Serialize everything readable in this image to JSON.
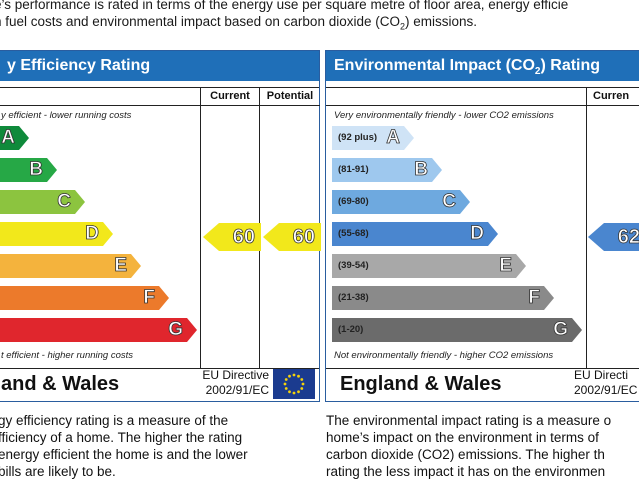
{
  "intro": {
    "line1": "e’s performance is rated in terms of the energy use per square metre of floor area, energy efficie",
    "line2": "n fuel costs and environmental impact based on carbon dioxide (CO",
    "line2_sub": "2",
    "line2_end": ") emissions."
  },
  "energy": {
    "title": "y Efficiency Rating",
    "col_current": "Current",
    "col_potential": "Potential",
    "top_caption": "y efficient - lower running costs",
    "bottom_caption": "t efficient - higher running costs",
    "bands": [
      {
        "letter": "A",
        "color": "#0f8a3b"
      },
      {
        "letter": "B",
        "color": "#26a846"
      },
      {
        "letter": "C",
        "color": "#8cc43f"
      },
      {
        "letter": "D",
        "color": "#f2e81b"
      },
      {
        "letter": "E",
        "color": "#f4b33d"
      },
      {
        "letter": "F",
        "color": "#ec7a2b"
      },
      {
        "letter": "G",
        "color": "#e0262d"
      }
    ],
    "current": "60",
    "potential": "60",
    "arrow_color": "#f2e81b",
    "footer": "and & Wales",
    "eu_line1": "EU Directive",
    "eu_line2": "2002/91/EC"
  },
  "environment": {
    "title": "Environmental Impact (CO",
    "title_sub": "2",
    "title_end": ") Rating",
    "col_current": "Curren",
    "top_caption": "Very environmentally friendly - lower CO2 emissions",
    "bottom_caption": "Not environmentally friendly - higher CO2 emissions",
    "bands": [
      {
        "range": "(92 plus)",
        "letter": "A",
        "color": "#cfe3f6"
      },
      {
        "range": "(81-91)",
        "letter": "B",
        "color": "#9ec8ee"
      },
      {
        "range": "(69-80)",
        "letter": "C",
        "color": "#6ea9df"
      },
      {
        "range": "(55-68)",
        "letter": "D",
        "color": "#4a86cf"
      },
      {
        "range": "(39-54)",
        "letter": "E",
        "color": "#a8a8a8"
      },
      {
        "range": "(21-38)",
        "letter": "F",
        "color": "#8a8a8a"
      },
      {
        "range": "(1-20)",
        "letter": "G",
        "color": "#6b6b6b"
      }
    ],
    "current": "62",
    "arrow_color": "#4a86cf",
    "footer": "England & Wales",
    "eu_line1": "EU Directi",
    "eu_line2": "2002/91/EC"
  },
  "desc_left": [
    "gy efficiency rating is a measure of the",
    "fficiency of a home. The higher the rating",
    " energy efficient the home is and the lower",
    "bills are likely to be."
  ],
  "desc_right": [
    "The environmental impact rating is a measure o",
    "home’s impact on the environment in terms of",
    "carbon dioxide (CO2) emissions. The higher th",
    "rating the less impact it has on the environmen"
  ]
}
